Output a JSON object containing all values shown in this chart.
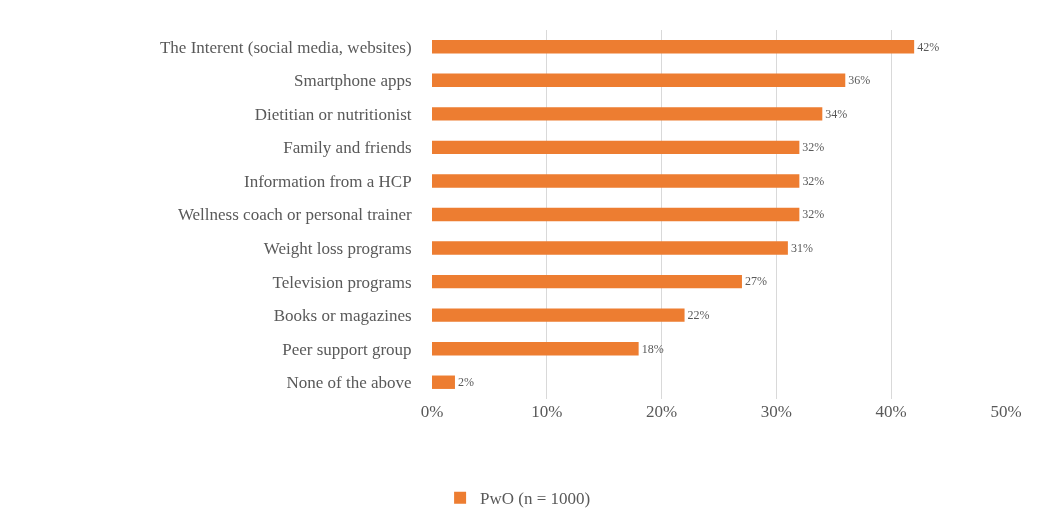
{
  "chart_data": {
    "type": "bar",
    "orientation": "horizontal",
    "categories": [
      "The Interent (social media, websites)",
      "Smartphone apps",
      "Dietitian or nutritionist",
      "Family and friends",
      "Information from a HCP",
      "Wellness coach or personal trainer",
      "Weight loss programs",
      "Television programs",
      "Books or magazines",
      "Peer support group",
      "None of the above"
    ],
    "series": [
      {
        "name": "PwO (n = 1000)",
        "color": "#ed7d31",
        "values": [
          42,
          36,
          34,
          32,
          32,
          32,
          31,
          27,
          22,
          18,
          2
        ],
        "value_labels": [
          "42%",
          "36%",
          "34%",
          "32%",
          "32%",
          "32%",
          "31%",
          "27%",
          "22%",
          "18%",
          "2%"
        ]
      }
    ],
    "xlim": [
      0,
      50
    ],
    "xticks": [
      {
        "value": 0,
        "label": "0%"
      },
      {
        "value": 10,
        "label": "10%"
      },
      {
        "value": 20,
        "label": "20%"
      },
      {
        "value": 30,
        "label": "30%"
      },
      {
        "value": 40,
        "label": "40%"
      },
      {
        "value": 50,
        "label": "50%"
      }
    ],
    "grid": "x",
    "legend": "bottom"
  }
}
